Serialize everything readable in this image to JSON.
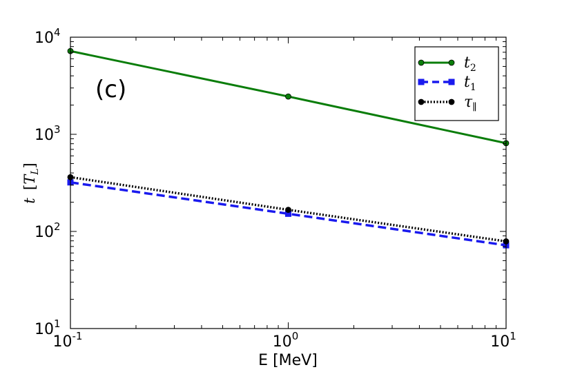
{
  "chart_data": {
    "type": "line",
    "panel_label": "(c)",
    "x_scale": "log",
    "y_scale": "log",
    "xlim": [
      0.1,
      10
    ],
    "ylim": [
      10,
      10000
    ],
    "x_ticks": [
      {
        "value": 0.1,
        "base": "10",
        "exp": "-1"
      },
      {
        "value": 1,
        "base": "10",
        "exp": "0"
      },
      {
        "value": 10,
        "base": "10",
        "exp": "1"
      }
    ],
    "y_ticks": [
      {
        "value": 10,
        "base": "10",
        "exp": "1"
      },
      {
        "value": 100,
        "base": "10",
        "exp": "2"
      },
      {
        "value": 1000,
        "base": "10",
        "exp": "3"
      },
      {
        "value": 10000,
        "base": "10",
        "exp": "4"
      }
    ],
    "xlabel": "E [MeV]",
    "ylabel": {
      "var": "t",
      "open": "[",
      "unit": "T",
      "unit_sub": "L",
      "close": "]"
    },
    "x": [
      0.1,
      1,
      10
    ],
    "series": [
      {
        "name": "t2",
        "legend_main": "t",
        "legend_sub": "2",
        "values": [
          7200,
          2450,
          810
        ],
        "color": "#0a7d0a",
        "style": "solid",
        "marker": "circle"
      },
      {
        "name": "t1",
        "legend_main": "t",
        "legend_sub": "1",
        "values": [
          320,
          152,
          72
        ],
        "color": "#1a1aee",
        "style": "dashed",
        "marker": "square"
      },
      {
        "name": "tau_parallel",
        "legend_main": "τ",
        "legend_sub": "∥",
        "values": [
          362,
          167,
          79
        ],
        "color": "#000000",
        "style": "dotted",
        "marker": "circle"
      }
    ],
    "legend_position": "top-right"
  }
}
